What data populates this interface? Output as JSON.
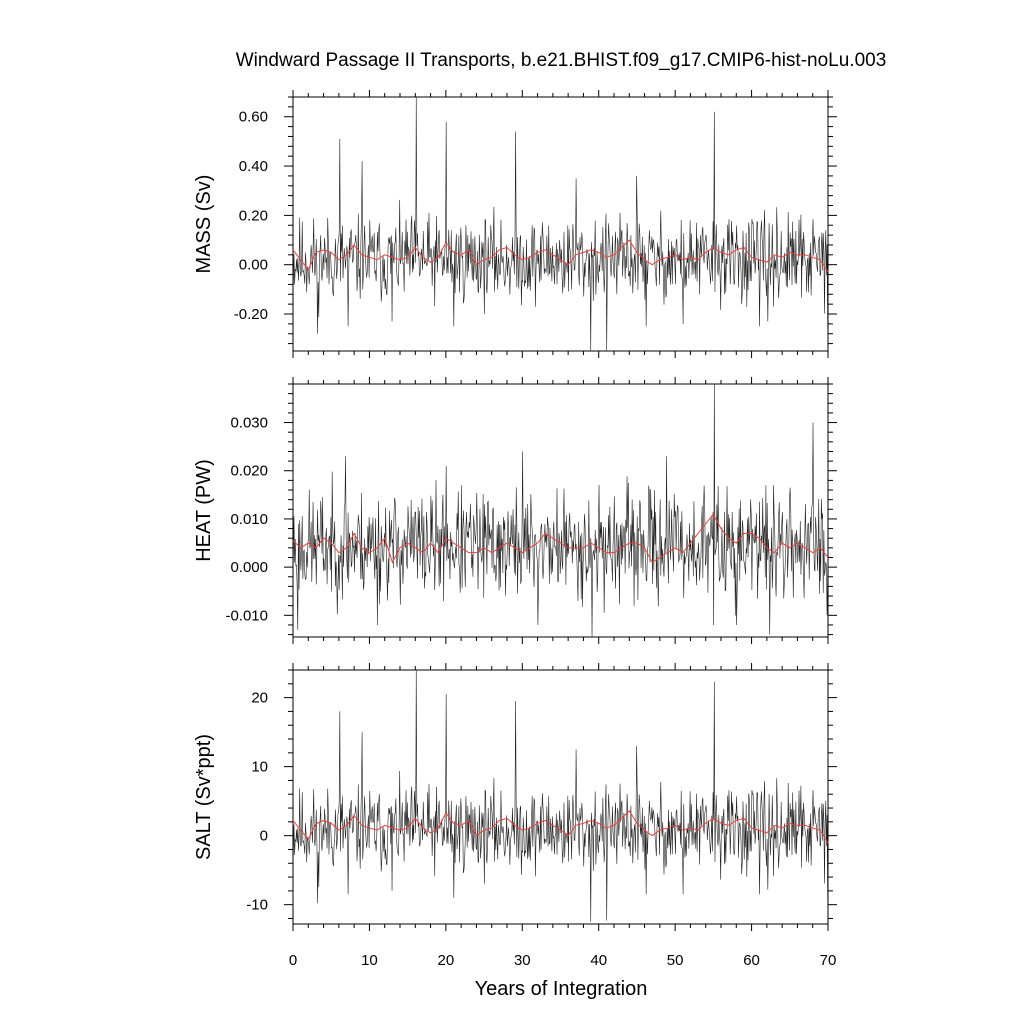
{
  "chart_data": [
    {
      "type": "line",
      "title": "Windward Passage II Transports, b.e21.BHIST.f09_g17.CMIP6-hist-noLu.003",
      "ylabel": "MASS (Sv)",
      "xlabel": "",
      "xlim": [
        0,
        70
      ],
      "ylim": [
        -0.35,
        0.68
      ],
      "yticks": [
        -0.2,
        0.0,
        0.2,
        0.4,
        0.6
      ],
      "ytick_labels": [
        "-0.20",
        "0.00",
        "0.20",
        "0.40",
        "0.60"
      ],
      "series": [
        {
          "color": "#222222",
          "style": "monthly",
          "base": 0.02,
          "noise": 0.085,
          "seed": 11,
          "spikes": [
            [
              6.1,
              0.51
            ],
            [
              9.0,
              0.42
            ],
            [
              16.1,
              0.68
            ],
            [
              20.0,
              0.58
            ],
            [
              29.1,
              0.54
            ],
            [
              37.0,
              0.35
            ],
            [
              44.9,
              0.36
            ],
            [
              55.1,
              0.62
            ],
            [
              3.2,
              -0.28
            ],
            [
              7.2,
              -0.25
            ],
            [
              12.9,
              -0.23
            ],
            [
              21.0,
              -0.25
            ],
            [
              38.9,
              -0.35
            ],
            [
              41.0,
              -0.35
            ],
            [
              46.2,
              -0.25
            ],
            [
              51.0,
              -0.24
            ],
            [
              61.0,
              -0.25
            ],
            [
              62.1,
              -0.23
            ],
            [
              69.9,
              -0.26
            ]
          ]
        },
        {
          "color": "#e8413a",
          "style": "smooth",
          "values": [
            0.06,
            0.02,
            -0.02,
            0.05,
            0.06,
            0.05,
            0.02,
            0.04,
            0.08,
            0.04,
            0.03,
            0.02,
            0.04,
            0.03,
            0.02,
            0.03,
            0.07,
            0.03,
            0.01,
            0.03,
            0.09,
            0.05,
            0.04,
            0.06,
            0.0,
            0.02,
            0.03,
            0.06,
            0.07,
            0.04,
            0.02,
            0.03,
            0.05,
            0.06,
            0.04,
            0.02,
            0.0,
            0.04,
            0.05,
            0.06,
            0.05,
            0.03,
            0.04,
            0.07,
            0.1,
            0.05,
            0.02,
            0.0,
            0.02,
            0.03,
            0.04,
            0.02,
            0.03,
            0.02,
            0.05,
            0.07,
            0.05,
            0.04,
            0.06,
            0.07,
            0.03,
            0.02,
            0.01,
            0.04,
            0.03,
            0.05,
            0.04,
            0.04,
            0.03,
            0.02,
            -0.03
          ]
        }
      ]
    },
    {
      "type": "line",
      "title": "",
      "ylabel": "HEAT (PW)",
      "xlabel": "",
      "xlim": [
        0,
        70
      ],
      "ylim": [
        -0.0145,
        0.038
      ],
      "yticks": [
        -0.01,
        0.0,
        0.01,
        0.02,
        0.03
      ],
      "ytick_labels": [
        "-0.010",
        "0.000",
        "0.010",
        "0.020",
        "0.030"
      ],
      "series": [
        {
          "color": "#222222",
          "style": "monthly",
          "base": 0.0045,
          "noise": 0.0055,
          "seed": 23,
          "spikes": [
            [
              55.1,
              0.038
            ],
            [
              30.0,
              0.024
            ],
            [
              48.8,
              0.023
            ],
            [
              68.0,
              0.03
            ],
            [
              6.8,
              0.023
            ],
            [
              20.0,
              0.021
            ],
            [
              62.8,
              0.017
            ],
            [
              0.6,
              -0.013
            ],
            [
              11.0,
              -0.012
            ],
            [
              32.0,
              -0.012
            ],
            [
              39.1,
              -0.0145
            ],
            [
              55.0,
              -0.012
            ],
            [
              58.0,
              -0.012
            ],
            [
              62.3,
              -0.014
            ],
            [
              69.8,
              -0.01
            ]
          ]
        },
        {
          "color": "#e8413a",
          "style": "smooth",
          "values": [
            0.0055,
            0.004,
            0.005,
            0.004,
            0.006,
            0.005,
            0.003,
            0.004,
            0.007,
            0.004,
            0.003,
            0.004,
            0.006,
            0.001,
            0.004,
            0.005,
            0.004,
            0.003,
            0.005,
            0.003,
            0.006,
            0.005,
            0.004,
            0.003,
            0.003,
            0.004,
            0.003,
            0.004,
            0.005,
            0.004,
            0.003,
            0.004,
            0.005,
            0.007,
            0.006,
            0.005,
            0.004,
            0.004,
            0.004,
            0.005,
            0.004,
            0.003,
            0.003,
            0.004,
            0.005,
            0.005,
            0.004,
            0.001,
            0.002,
            0.003,
            0.004,
            0.003,
            0.005,
            0.007,
            0.009,
            0.011,
            0.008,
            0.006,
            0.005,
            0.007,
            0.007,
            0.006,
            0.004,
            0.003,
            0.005,
            0.004,
            0.005,
            0.004,
            0.003,
            0.004,
            0.002
          ]
        }
      ]
    },
    {
      "type": "line",
      "title": "",
      "ylabel": "SALT (Sv*ppt)",
      "xlabel": "Years of Integration",
      "xlim": [
        0,
        70
      ],
      "ylim": [
        -12.8,
        24.0
      ],
      "yticks": [
        -10,
        0,
        10,
        20
      ],
      "ytick_labels": [
        "-10",
        "0",
        "10",
        "20"
      ],
      "xticks": [
        0,
        10,
        20,
        30,
        40,
        50,
        60,
        70
      ],
      "xtick_labels": [
        "0",
        "10",
        "20",
        "30",
        "40",
        "50",
        "60",
        "70"
      ],
      "series": [
        {
          "color": "#222222",
          "style": "monthly",
          "base": 0.8,
          "noise": 3.0,
          "seed": 11,
          "spikes": [
            [
              6.1,
              18.0
            ],
            [
              9.0,
              15.0
            ],
            [
              16.1,
              24.0
            ],
            [
              20.0,
              20.5
            ],
            [
              29.1,
              19.5
            ],
            [
              37.0,
              12.5
            ],
            [
              44.9,
              13.0
            ],
            [
              55.1,
              22.3
            ],
            [
              3.2,
              -9.8
            ],
            [
              7.2,
              -8.5
            ],
            [
              12.9,
              -8.0
            ],
            [
              21.0,
              -9.0
            ],
            [
              38.9,
              -12.5
            ],
            [
              41.0,
              -12.3
            ],
            [
              46.2,
              -8.5
            ],
            [
              51.0,
              -8.5
            ],
            [
              61.0,
              -8.5
            ],
            [
              62.1,
              -7.8
            ],
            [
              69.9,
              -9.5
            ]
          ]
        },
        {
          "color": "#e8413a",
          "style": "smooth",
          "values": [
            2.2,
            0.8,
            -0.5,
            1.7,
            2.2,
            1.8,
            0.8,
            1.5,
            2.9,
            1.5,
            1.1,
            0.8,
            1.5,
            1.1,
            0.8,
            1.1,
            2.5,
            1.1,
            0.4,
            1.1,
            3.3,
            1.8,
            1.5,
            2.2,
            0.0,
            0.8,
            1.1,
            2.2,
            2.5,
            1.5,
            0.8,
            1.1,
            1.8,
            2.2,
            1.5,
            0.8,
            0.0,
            1.5,
            1.8,
            2.2,
            1.8,
            1.1,
            1.5,
            2.5,
            3.6,
            1.8,
            0.8,
            0.0,
            0.8,
            1.1,
            1.5,
            0.8,
            1.1,
            0.8,
            1.8,
            2.5,
            1.8,
            1.5,
            2.2,
            2.5,
            1.1,
            0.8,
            0.4,
            1.5,
            1.1,
            1.8,
            1.5,
            1.5,
            1.1,
            0.8,
            -1.1
          ]
        }
      ]
    }
  ]
}
